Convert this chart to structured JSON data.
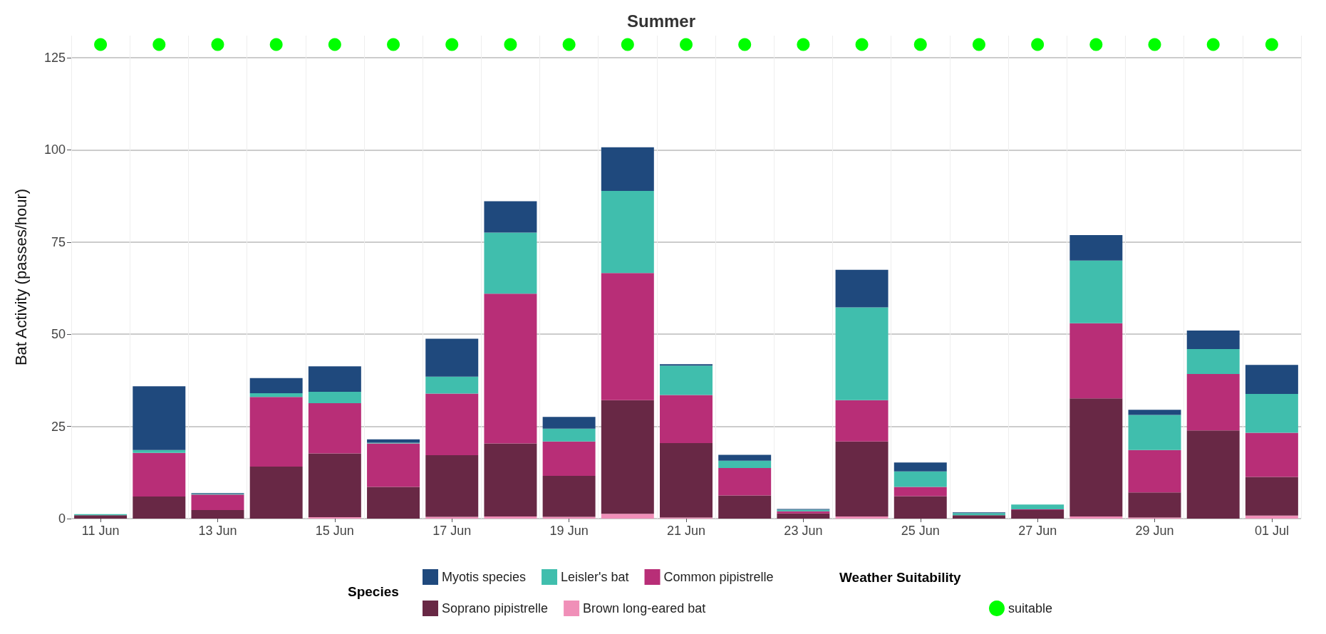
{
  "chart_data": {
    "type": "bar",
    "title": "Summer",
    "ylabel": "Bat Activity (passes/hour)",
    "legend_title": "Species",
    "annotations": [
      "Weather Suitability"
    ],
    "categories": [
      "11 Jun",
      null,
      "13 Jun",
      null,
      "15 Jun",
      null,
      "17 Jun",
      null,
      "19 Jun",
      null,
      "21 Jun",
      null,
      "23 Jun",
      null,
      "25 Jun",
      null,
      "27 Jun",
      null,
      "29 Jun",
      null,
      "01 Jul"
    ],
    "stacked": true,
    "ylim": [
      0,
      131
    ],
    "yticks": [
      0,
      25,
      50,
      75,
      100,
      125
    ],
    "grid": true,
    "legend": "bottom",
    "series": [
      {
        "name": "Brown long-eared bat",
        "color": "#f08fb8",
        "values": [
          0,
          0,
          0,
          0,
          0.4,
          0,
          0.5,
          0.6,
          0.5,
          1.3,
          0.3,
          0,
          0,
          0.6,
          0,
          0,
          0,
          0.6,
          0.3,
          0,
          0.8
        ]
      },
      {
        "name": "Soprano pipistrelle",
        "color": "#682845",
        "values": [
          0.9,
          6.0,
          2.3,
          14.1,
          17.3,
          8.6,
          16.7,
          19.8,
          11.1,
          30.8,
          20.2,
          6.3,
          1.4,
          20.3,
          6.1,
          0.9,
          2.3,
          32.0,
          6.8,
          23.9,
          10.5
        ]
      },
      {
        "name": "Common pipistrelle",
        "color": "#b82e77",
        "values": [
          null,
          11.8,
          4.2,
          18.9,
          13.6,
          11.8,
          16.7,
          40.6,
          9.3,
          34.5,
          13.0,
          7.4,
          0.6,
          11.2,
          2.5,
          null,
          0.2,
          20.4,
          11.5,
          15.3,
          12.0
        ]
      },
      {
        "name": "Leisler's bat",
        "color": "#40bead",
        "values": [
          0.3,
          0.8,
          0.2,
          1.0,
          3.1,
          0.2,
          4.6,
          16.6,
          3.5,
          22.3,
          8.0,
          2.0,
          0.4,
          25.2,
          4.2,
          0.6,
          1.3,
          17.0,
          9.5,
          6.8,
          10.5
        ]
      },
      {
        "name": "Myotis species",
        "color": "#1f497d",
        "values": [
          0,
          17.3,
          0.2,
          4.1,
          6.9,
          0.9,
          10.3,
          8.5,
          3.2,
          11.8,
          0.4,
          1.6,
          0.2,
          10.2,
          2.4,
          0.2,
          0,
          6.9,
          1.4,
          5.0,
          7.9
        ]
      },
      {
        "name": "suitable",
        "type": "scatter",
        "marker": "circle",
        "color": "#00ff00",
        "values": [
          128.6,
          128.6,
          128.6,
          128.6,
          128.6,
          128.6,
          128.6,
          128.6,
          128.6,
          128.6,
          128.6,
          128.6,
          128.6,
          128.6,
          128.6,
          128.6,
          128.6,
          128.6,
          128.6,
          128.6,
          128.6
        ]
      }
    ]
  }
}
